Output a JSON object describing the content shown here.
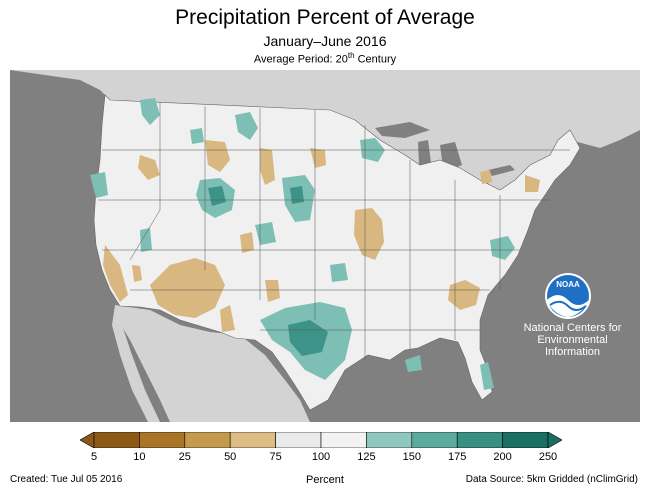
{
  "header": {
    "title": "Precipitation Percent of Average",
    "subtitle": "January–June 2016",
    "period_prefix": "Average Period: 20",
    "period_sup": "th",
    "period_suffix": " Century"
  },
  "logo": {
    "text": "NOAA",
    "icon": "noaa-logo-icon"
  },
  "centers": {
    "line1": "National Centers for",
    "line2": "Environmental",
    "line3": "Information"
  },
  "legend": {
    "ticks": [
      "5",
      "10",
      "25",
      "50",
      "75",
      "100",
      "125",
      "150",
      "175",
      "200",
      "250"
    ],
    "colors": [
      "#8c5a16",
      "#a87426",
      "#c49a4d",
      "#dcbd85",
      "#eaeaea",
      "#f2f2f2",
      "#8fc7be",
      "#5caa9e",
      "#3a8f83",
      "#1a6f65"
    ],
    "label": "Percent"
  },
  "footer": {
    "created": "Created: Tue Jul 05 2016",
    "source": "Data Source: 5km Gridded (nClimGrid)"
  },
  "colors": {
    "ocean": "#808080",
    "land_foreign": "#d3d3d3",
    "land_us": "#f0f0f0",
    "dry": "#d8b780",
    "wet": "#7dbfb4",
    "wet_dark": "#3d9387"
  }
}
